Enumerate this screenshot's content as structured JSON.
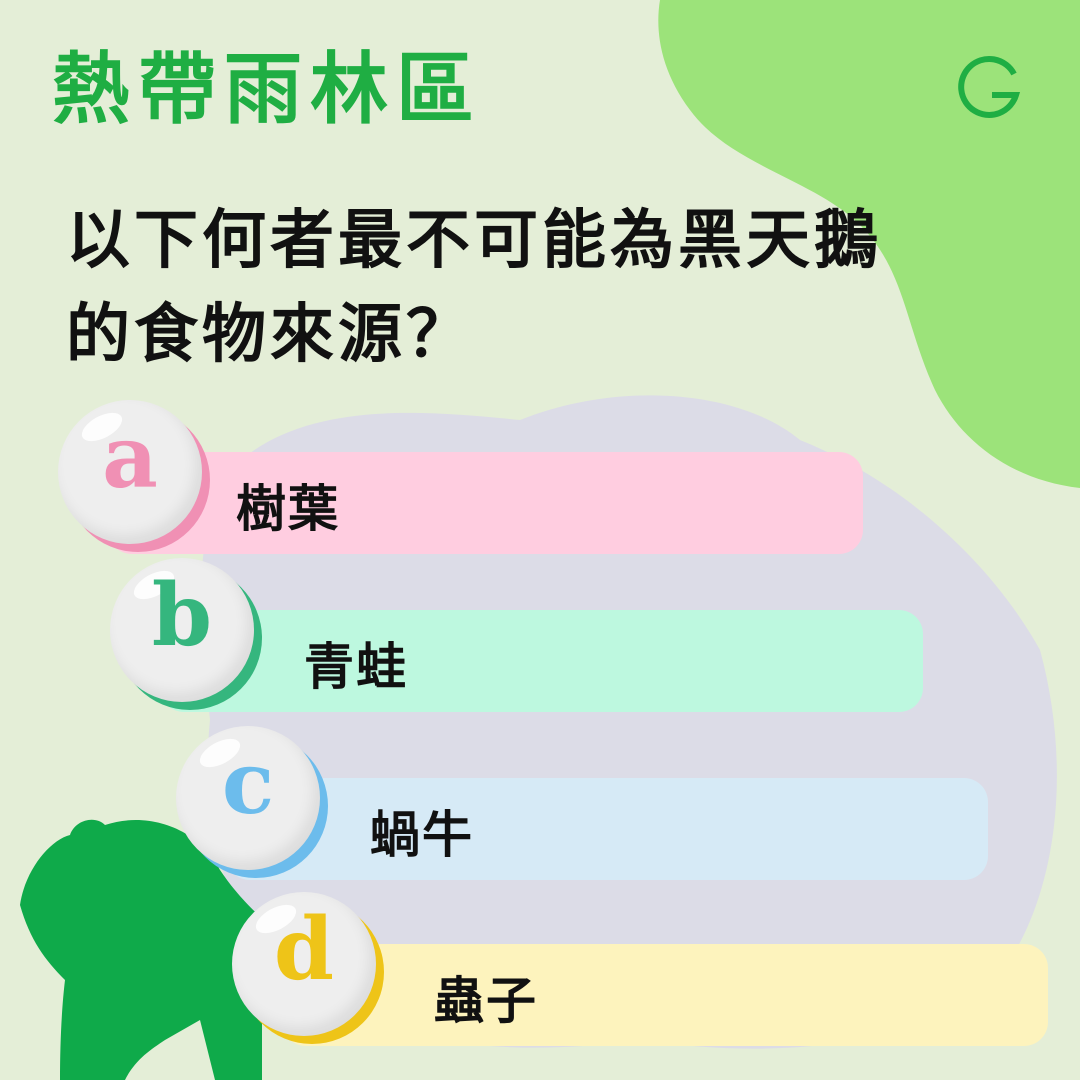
{
  "topic": "熱帶雨林區",
  "question": "以下何者最不可能為黑天鵝的食物來源？",
  "logo": {
    "icon": "g-logo-icon",
    "color": "#1fae43"
  },
  "colors": {
    "background": "#e4eed7",
    "corner_blob": "#9ce37a",
    "silhouette": "#0faa4a",
    "title_green": "#1fae43"
  },
  "options": [
    {
      "letter": "a",
      "text": "樹葉",
      "bar_color": "#ffcde0",
      "accent": "#f090b4"
    },
    {
      "letter": "b",
      "text": "青蛙",
      "bar_color": "#bdf8df",
      "accent": "#35b67e"
    },
    {
      "letter": "c",
      "text": "蝸牛",
      "bar_color": "#d6eaf6",
      "accent": "#6cbcec"
    },
    {
      "letter": "d",
      "text": "蟲子",
      "bar_color": "#fdf3bd",
      "accent": "#eec418"
    }
  ]
}
